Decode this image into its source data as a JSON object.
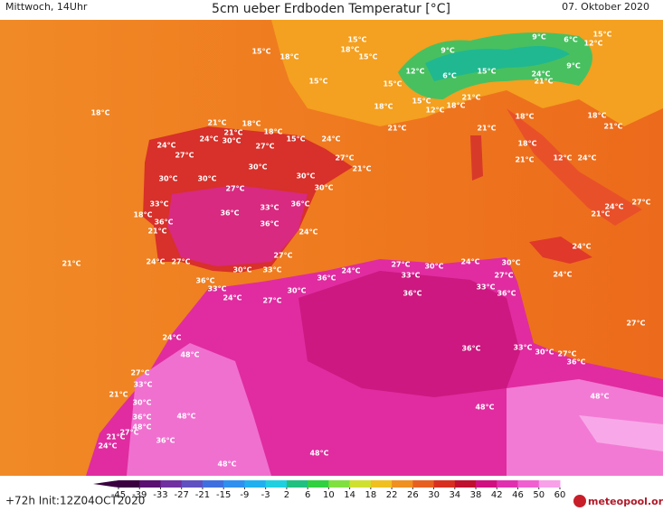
{
  "header": {
    "left": "Mittwoch, 14Uhr",
    "title": "5cm ueber Erdboden Temperatur [°C]",
    "right": "07. Oktober 2020"
  },
  "footer": {
    "init": "+72h Init:12Z04OCT2020",
    "logo": "meteopool.org"
  },
  "colorbar": {
    "ticks": [
      -45,
      -39,
      -33,
      -27,
      -21,
      -15,
      -9,
      -3,
      2,
      6,
      10,
      14,
      18,
      22,
      26,
      30,
      34,
      38,
      42,
      46,
      50,
      60
    ],
    "colors": [
      "#3a0040",
      "#5a1070",
      "#7030a0",
      "#6050c0",
      "#4070e0",
      "#3090f0",
      "#20b0f0",
      "#20d0e0",
      "#20c080",
      "#30d040",
      "#80e040",
      "#d0e030",
      "#f0c020",
      "#f09020",
      "#e86020",
      "#d83020",
      "#c01030",
      "#d01080",
      "#e030b0",
      "#f060d0",
      "#f8a0e8"
    ]
  },
  "labels": [
    "15°C",
    "18°C",
    "15°C",
    "15°C",
    "18°C",
    "15°C",
    "15°C",
    "12°C",
    "9°C",
    "6°C",
    "15°C",
    "9°C",
    "6°C",
    "12°C",
    "15°C",
    "24°C",
    "21°C",
    "9°C",
    "18°C",
    "18°C",
    "21°C",
    "18°C",
    "15°C",
    "12°C",
    "21°C",
    "21°C",
    "18°C",
    "18°C",
    "21°C",
    "21°C",
    "18°C",
    "21°C",
    "18°C",
    "24°C",
    "30°C",
    "27°C",
    "15°C",
    "24°C",
    "24°C",
    "27°C",
    "27°C",
    "21°C",
    "30°C",
    "30°C",
    "30°C",
    "27°C",
    "30°C",
    "30°C",
    "33°C",
    "18°C",
    "36°C",
    "33°C",
    "36°C",
    "36°C",
    "36°C",
    "21°C",
    "24°C",
    "27°C",
    "21°C",
    "24°C",
    "27°C",
    "30°C",
    "33°C",
    "18°C",
    "21°C",
    "12°C",
    "24°C",
    "21°C",
    "24°C",
    "27°C",
    "24°C",
    "24°C",
    "27°C",
    "24°C",
    "33°C",
    "30°C",
    "24°C",
    "30°C",
    "27°C",
    "33°C",
    "36°C",
    "36°C",
    "36°C",
    "33°C",
    "24°C",
    "27°C",
    "30°C",
    "36°C",
    "27°C",
    "24°C",
    "36°C",
    "33°C",
    "30°C",
    "27°C",
    "36°C",
    "48°C",
    "27°C",
    "33°C",
    "21°C",
    "30°C",
    "48°C",
    "48°C",
    "36°C",
    "48°C",
    "27°C",
    "21°C",
    "48°C",
    "36°C",
    "24°C",
    "48°C",
    "48°C"
  ]
}
